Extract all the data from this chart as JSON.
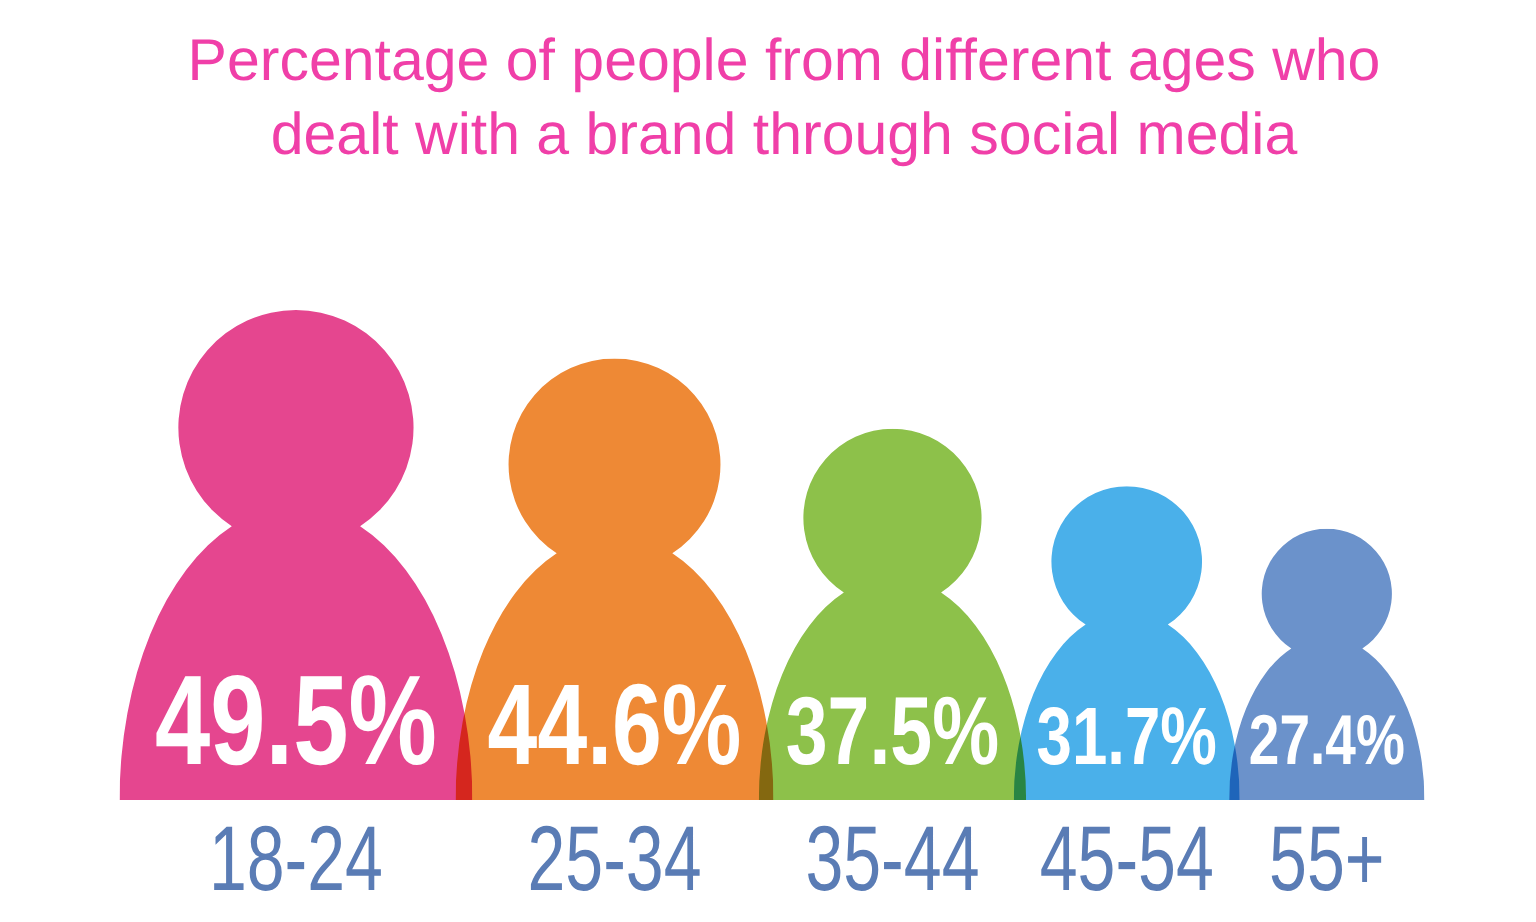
{
  "chart_data": {
    "type": "bar",
    "title": "Percentage of people from different ages who dealt with a brand through social media",
    "categories": [
      "18-24",
      "25-34",
      "35-44",
      "45-54",
      "55+"
    ],
    "values": [
      49.5,
      44.6,
      37.5,
      31.7,
      27.4
    ],
    "value_labels": [
      "49.5%",
      "44.6%",
      "37.5%",
      "31.7%",
      "27.4%"
    ],
    "colors": [
      "#e5468f",
      "#ee8935",
      "#8dc14a",
      "#4ab0ea",
      "#6b92cb"
    ]
  }
}
